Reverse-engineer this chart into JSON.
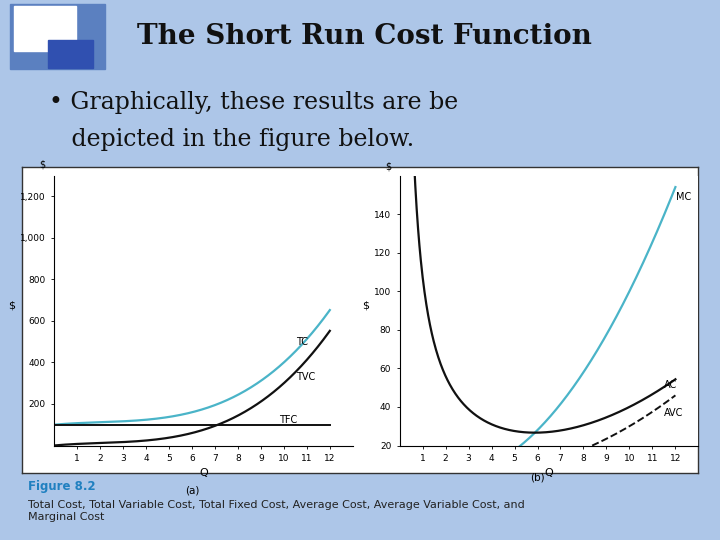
{
  "title": "The Short Run Cost Function",
  "bullet_line1": "• Graphically, these results are be",
  "bullet_line2": "   depicted in the figure below.",
  "figure_caption": "Figure 8.2",
  "figure_caption2": "Total Cost, Total Variable Cost, Total Fixed Cost, Average Cost, Average Variable Cost, and\nMarginal Cost",
  "slide_bg": "#adc6e8",
  "panel_bg": "#ffffff",
  "title_color": "#111111",
  "bullet_color": "#111111",
  "caption_color": "#2080c0",
  "tc_color": "#4ab4c8",
  "tvc_color": "#111111",
  "tfc_color": "#111111",
  "mc_color": "#4ab4c8",
  "ac_color": "#111111",
  "avc_color": "#111111",
  "logo_outer": "#5b80c0",
  "logo_inner": "#3050b0",
  "tfc_value": 100,
  "panel_a_ylabel": "$",
  "panel_b_ylabel": "$",
  "panel_a_xlabel": "Q",
  "panel_b_xlabel": "Q",
  "panel_a_label": "(a)",
  "panel_b_label": "(b)"
}
